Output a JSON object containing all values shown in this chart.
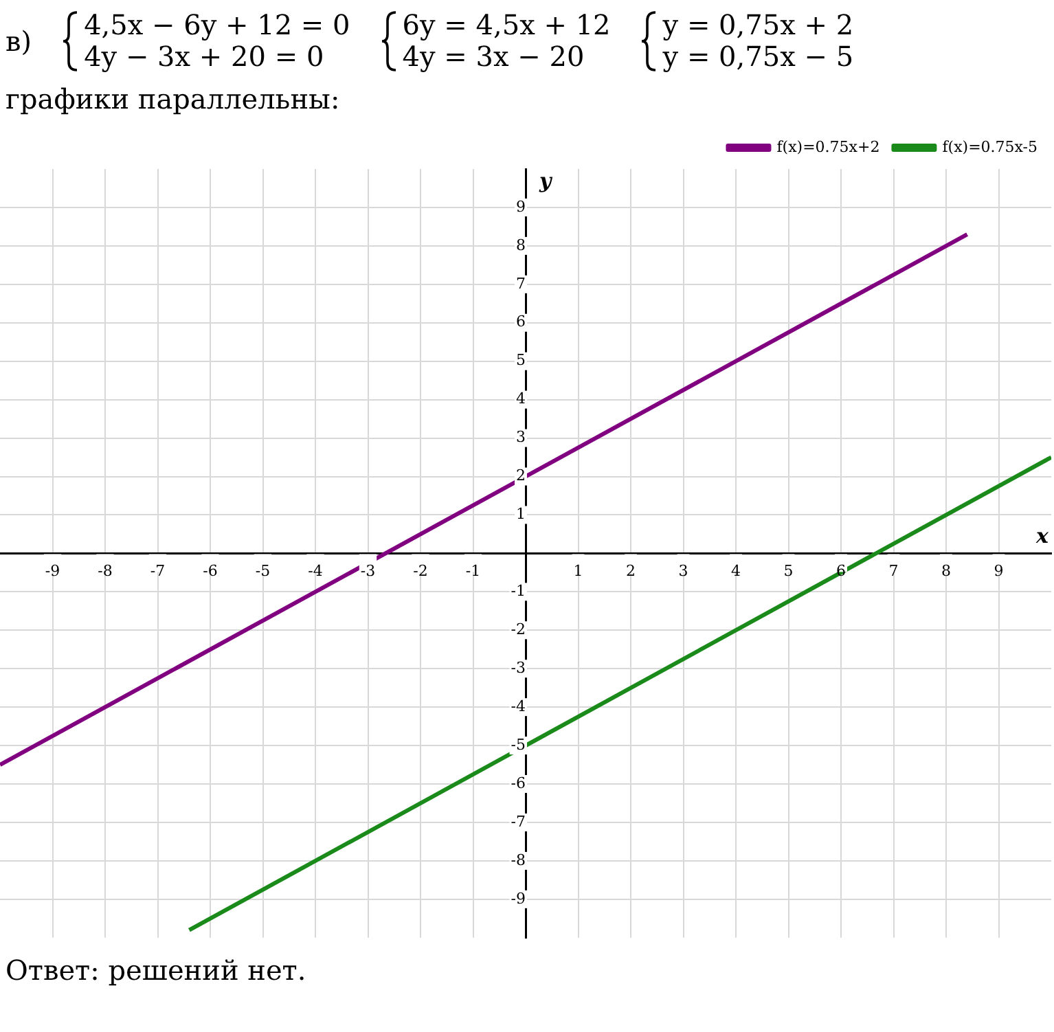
{
  "chart_data": {
    "type": "line",
    "annotations": [
      "в)",
      "4,5x − 6y + 12 = 0",
      "4y − 3x + 20 = 0",
      "6y = 4,5x + 12",
      "4y = 3x − 20",
      "y = 0,75x + 2",
      "y = 0,75x − 5",
      "графики параллельны:",
      "Ответ: решений нет."
    ],
    "xlabel": "x",
    "ylabel": "y",
    "series": [
      {
        "name": "f(x)=0.75x+2",
        "color": "#800080",
        "x": [
          -10,
          8.4
        ],
        "values": [
          -5.5,
          8.3
        ]
      },
      {
        "name": "f(x)=0.75x-5",
        "color": "#1a8a1a",
        "x": [
          -6.4,
          10
        ],
        "values": [
          -9.8,
          2.5
        ]
      }
    ],
    "xlim": [
      -10,
      10
    ],
    "ylim": [
      -10,
      10
    ],
    "xticks": [
      -9,
      -8,
      -7,
      -6,
      -5,
      -4,
      -3,
      -2,
      -1,
      1,
      2,
      3,
      4,
      5,
      6,
      7,
      8,
      9
    ],
    "yticks": [
      -9,
      -8,
      -7,
      -6,
      -5,
      -4,
      -3,
      -2,
      -1,
      1,
      2,
      3,
      4,
      5,
      6,
      7,
      8,
      9
    ],
    "grid": true,
    "legend": "top right",
    "marker": "none",
    "line_style": "solid"
  }
}
